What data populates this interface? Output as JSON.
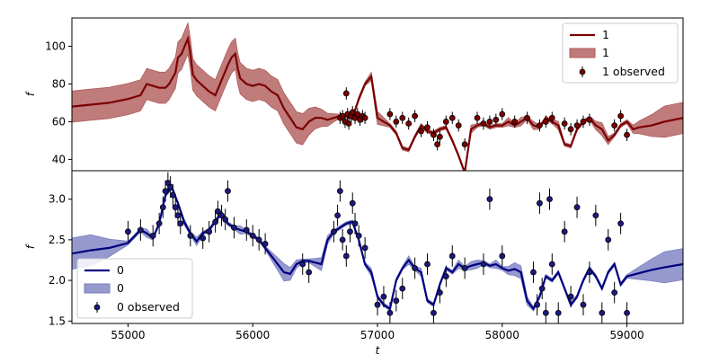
{
  "chart_data": [
    {
      "type": "line",
      "panel": "top",
      "xlim": [
        54550,
        59450
      ],
      "ylim": [
        34,
        115
      ],
      "ylabel": "f",
      "xlabel": "",
      "y_ticks": [
        40,
        60,
        80,
        100
      ],
      "grid": false,
      "legend_position": "top-right",
      "legend": [
        "1",
        "1",
        "1 observed"
      ],
      "colors": {
        "line": "#7b0000",
        "band": "#b05a5a",
        "points": "#7b0000"
      },
      "series": [
        {
          "name": "1",
          "kind": "model",
          "x": [
            54550,
            54700,
            54850,
            55000,
            55100,
            55150,
            55200,
            55250,
            55300,
            55330,
            55380,
            55400,
            55430,
            55460,
            55480,
            55500,
            55520,
            55550,
            55600,
            55650,
            55700,
            55750,
            55800,
            55830,
            55860,
            55880,
            55900,
            55950,
            56000,
            56050,
            56100,
            56150,
            56200,
            56250,
            56300,
            56350,
            56400,
            56450,
            56500,
            56550,
            56600,
            56650,
            56700,
            56750,
            56800,
            56850,
            56900,
            56950,
            57000,
            57050,
            57100,
            57150,
            57200,
            57250,
            57300,
            57350,
            57400,
            57450,
            57500,
            57550,
            57600,
            57650,
            57700,
            57750,
            57800,
            57850,
            57900,
            57950,
            58000,
            58050,
            58100,
            58150,
            58200,
            58250,
            58300,
            58350,
            58400,
            58450,
            58500,
            58550,
            58600,
            58650,
            58700,
            58750,
            58800,
            58850,
            58900,
            58950,
            59000,
            59050,
            59100,
            59200,
            59300,
            59450
          ],
          "y": [
            68,
            69,
            70,
            72,
            74,
            80,
            79,
            78,
            78,
            80,
            86,
            94,
            96,
            101,
            104,
            96,
            85,
            82,
            79,
            76,
            74,
            82,
            90,
            94,
            96,
            88,
            83,
            80,
            79,
            80,
            79,
            76,
            74,
            67,
            62,
            57,
            56,
            60,
            62,
            62,
            61,
            62,
            63,
            63,
            62,
            72,
            80,
            84,
            62,
            60,
            58,
            54,
            46,
            45,
            52,
            58,
            55,
            54,
            56,
            57,
            50,
            42,
            33,
            56,
            58,
            59,
            57,
            58,
            58,
            60,
            58,
            60,
            62,
            58,
            57,
            62,
            60,
            58,
            48,
            47,
            56,
            60,
            62,
            58,
            56,
            50,
            53,
            58,
            60,
            56,
            57,
            58,
            60,
            62
          ]
        },
        {
          "name": "1 observed",
          "kind": "points",
          "x": [
            56700,
            56720,
            56740,
            56760,
            56770,
            56790,
            56800,
            56820,
            56840,
            56860,
            56880,
            56900,
            56750,
            57100,
            57150,
            57200,
            57250,
            57300,
            57350,
            57400,
            57450,
            57480,
            57500,
            57550,
            57600,
            57650,
            57700,
            57800,
            57850,
            57900,
            57950,
            58000,
            58100,
            58200,
            58300,
            58350,
            58400,
            58500,
            58550,
            58600,
            58650,
            58700,
            58900,
            58950,
            59000
          ],
          "y": [
            62,
            63,
            60,
            64,
            59,
            63,
            65,
            62,
            64,
            61,
            63,
            62,
            75,
            64,
            60,
            62,
            59,
            63,
            55,
            57,
            53,
            48,
            52,
            60,
            62,
            58,
            48,
            62,
            59,
            60,
            61,
            64,
            60,
            62,
            58,
            60,
            62,
            59,
            56,
            58,
            60,
            61,
            58,
            63,
            53
          ]
        }
      ]
    },
    {
      "type": "line",
      "panel": "bottom",
      "xlim": [
        54550,
        59450
      ],
      "ylim": [
        1.47,
        3.35
      ],
      "ylabel": "f",
      "xlabel": "t",
      "x_ticks": [
        55000,
        56000,
        57000,
        58000,
        59000
      ],
      "y_ticks": [
        1.5,
        2.0,
        2.5,
        3.0
      ],
      "grid": false,
      "legend_position": "bottom-left",
      "legend": [
        "0",
        "0",
        "0 observed"
      ],
      "colors": {
        "line": "#00007f",
        "band": "#7a80c0",
        "points": "#1a1a80"
      },
      "series": [
        {
          "name": "0",
          "kind": "model",
          "x": [
            54550,
            54700,
            54850,
            55000,
            55100,
            55150,
            55200,
            55250,
            55300,
            55350,
            55400,
            55450,
            55500,
            55550,
            55600,
            55650,
            55700,
            55750,
            55800,
            55850,
            55900,
            55950,
            56000,
            56050,
            56100,
            56150,
            56200,
            56250,
            56300,
            56350,
            56400,
            56450,
            56500,
            56550,
            56600,
            56650,
            56700,
            56750,
            56800,
            56850,
            56900,
            56950,
            57000,
            57050,
            57100,
            57150,
            57200,
            57250,
            57300,
            57350,
            57400,
            57450,
            57500,
            57550,
            57600,
            57650,
            57700,
            57750,
            57800,
            57850,
            57900,
            57950,
            58000,
            58050,
            58100,
            58150,
            58200,
            58250,
            58300,
            58350,
            58400,
            58450,
            58500,
            58550,
            58600,
            58650,
            58700,
            58750,
            58800,
            58850,
            58900,
            58950,
            59000,
            59100,
            59200,
            59300,
            59450
          ],
          "y": [
            2.33,
            2.37,
            2.4,
            2.46,
            2.62,
            2.58,
            2.52,
            2.7,
            3.05,
            3.15,
            2.95,
            2.72,
            2.58,
            2.48,
            2.58,
            2.62,
            2.73,
            2.83,
            2.7,
            2.65,
            2.62,
            2.6,
            2.55,
            2.5,
            2.4,
            2.3,
            2.2,
            2.1,
            2.08,
            2.2,
            2.24,
            2.24,
            2.22,
            2.2,
            2.5,
            2.6,
            2.65,
            2.7,
            2.72,
            2.5,
            2.2,
            2.1,
            1.8,
            1.7,
            1.65,
            2.0,
            2.15,
            2.25,
            2.15,
            2.1,
            1.75,
            1.7,
            1.95,
            2.15,
            2.1,
            2.2,
            2.15,
            2.18,
            2.2,
            2.22,
            2.18,
            2.2,
            2.15,
            2.12,
            2.14,
            2.1,
            1.75,
            1.65,
            1.8,
            2.05,
            2.0,
            2.1,
            1.9,
            1.7,
            1.8,
            2.0,
            2.15,
            2.05,
            1.9,
            2.1,
            2.2,
            1.95,
            2.05,
            2.09,
            2.13,
            2.16,
            2.2
          ]
        },
        {
          "name": "0 observed",
          "kind": "points",
          "x": [
            55000,
            55100,
            55200,
            55250,
            55280,
            55300,
            55320,
            55340,
            55360,
            55380,
            55400,
            55420,
            55500,
            55600,
            55650,
            55700,
            55720,
            55750,
            55780,
            55800,
            55850,
            55950,
            56000,
            56050,
            56100,
            56400,
            56450,
            56650,
            56680,
            56700,
            56720,
            56750,
            56780,
            56800,
            56820,
            56850,
            56900,
            57000,
            57050,
            57100,
            57150,
            57200,
            57300,
            57400,
            57450,
            57500,
            57550,
            57600,
            57700,
            57850,
            57900,
            58000,
            58250,
            58280,
            58300,
            58320,
            58350,
            58380,
            58400,
            58450,
            58500,
            58550,
            58600,
            58650,
            58700,
            58750,
            58800,
            58850,
            58900,
            58950,
            59000
          ],
          "y": [
            2.6,
            2.62,
            2.55,
            2.7,
            2.9,
            3.1,
            3.2,
            3.15,
            3.05,
            2.9,
            2.8,
            2.7,
            2.55,
            2.52,
            2.6,
            2.72,
            2.85,
            2.8,
            2.75,
            3.1,
            2.65,
            2.62,
            2.55,
            2.5,
            2.45,
            2.2,
            2.1,
            2.6,
            2.8,
            3.1,
            2.5,
            2.3,
            2.6,
            2.95,
            2.7,
            2.55,
            2.4,
            1.7,
            1.8,
            1.6,
            1.75,
            1.9,
            2.15,
            2.2,
            1.6,
            1.85,
            2.05,
            2.3,
            2.15,
            2.2,
            3.0,
            2.3,
            2.1,
            1.7,
            2.95,
            1.9,
            1.6,
            3.0,
            2.2,
            1.6,
            2.6,
            1.8,
            2.9,
            1.7,
            2.1,
            2.8,
            1.6,
            2.5,
            1.85,
            2.7,
            1.6
          ]
        }
      ]
    }
  ]
}
